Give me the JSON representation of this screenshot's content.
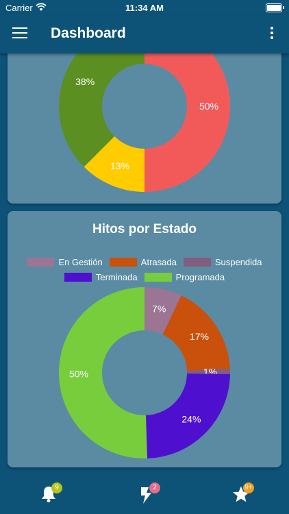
{
  "status_bar": {
    "carrier": "Carrier",
    "time": "11:34 AM"
  },
  "app_bar": {
    "title": "Dashboard",
    "menu_icon": "hamburger-menu-icon",
    "more_icon": "more-vertical-icon"
  },
  "chart_data": [
    {
      "type": "pie",
      "donut": true,
      "title": "",
      "slices": [
        {
          "label": "",
          "value": 50,
          "display": "50%",
          "color": "#f25a5a"
        },
        {
          "label": "",
          "value": 12.5,
          "display": "13%",
          "color": "#ffcc00"
        },
        {
          "label": "",
          "value": 37.5,
          "display": "38%",
          "color": "#5c8f22"
        }
      ]
    },
    {
      "type": "pie",
      "donut": true,
      "title": "Hitos por Estado",
      "legend": "top",
      "slices": [
        {
          "label": "En Gestión",
          "value": 7,
          "display": "7%",
          "color": "#9c7494"
        },
        {
          "label": "Atrasada",
          "value": 17,
          "display": "17%",
          "color": "#c9510c"
        },
        {
          "label": "Suspendida",
          "value": 1,
          "display": "1%",
          "color": "#835d7e"
        },
        {
          "label": "Terminada",
          "value": 24,
          "display": "24%",
          "color": "#4f0fcf"
        },
        {
          "label": "Programada",
          "value": 50,
          "display": "50%",
          "color": "#78cd3d"
        }
      ]
    }
  ],
  "bottom_nav": [
    {
      "icon": "bell-icon",
      "badge": "9",
      "badge_color": "#b7c41d"
    },
    {
      "icon": "lightning-icon",
      "badge": "2",
      "badge_color": "#e56c8a"
    },
    {
      "icon": "star-icon",
      "badge": "9+",
      "badge_color": "#f0a020"
    }
  ]
}
